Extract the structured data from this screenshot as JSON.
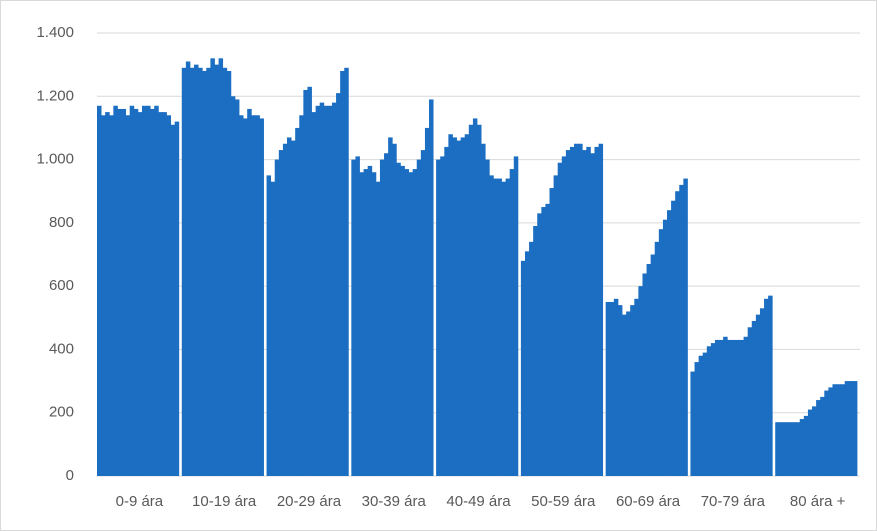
{
  "chart_data": {
    "type": "bar",
    "color": "#1b6ec2",
    "grid": true,
    "ylim": [
      0,
      1400
    ],
    "yticks": [
      0,
      200,
      400,
      600,
      800,
      {
        "value": 1000,
        "label": "1.000"
      },
      {
        "value": 1200,
        "label": "1.200"
      },
      {
        "value": 1400,
        "label": "1.400"
      }
    ],
    "groups": [
      {
        "label": "0-9 ára",
        "values": [
          1170,
          1140,
          1150,
          1140,
          1170,
          1160,
          1160,
          1140,
          1170,
          1160,
          1150,
          1170,
          1170,
          1160,
          1170,
          1150,
          1150,
          1140,
          1110,
          1120
        ]
      },
      {
        "label": "10-19 ára",
        "values": [
          1290,
          1310,
          1290,
          1300,
          1290,
          1280,
          1290,
          1320,
          1300,
          1320,
          1290,
          1280,
          1200,
          1190,
          1140,
          1130,
          1160,
          1140,
          1140,
          1130
        ]
      },
      {
        "label": "20-29 ára",
        "values": [
          950,
          930,
          1000,
          1030,
          1050,
          1070,
          1060,
          1100,
          1140,
          1220,
          1230,
          1150,
          1170,
          1180,
          1170,
          1170,
          1180,
          1210,
          1280,
          1290
        ]
      },
      {
        "label": "30-39 ára",
        "values": [
          1000,
          1010,
          960,
          970,
          980,
          960,
          930,
          1000,
          1020,
          1070,
          1050,
          990,
          980,
          970,
          960,
          970,
          1000,
          1030,
          1100,
          1190
        ]
      },
      {
        "label": "40-49 ára",
        "values": [
          1000,
          1010,
          1040,
          1080,
          1070,
          1060,
          1070,
          1080,
          1110,
          1130,
          1110,
          1050,
          1000,
          950,
          940,
          940,
          930,
          940,
          970,
          1010
        ]
      },
      {
        "label": "50-59 ára",
        "values": [
          680,
          710,
          740,
          790,
          830,
          850,
          860,
          910,
          950,
          990,
          1010,
          1030,
          1040,
          1050,
          1050,
          1030,
          1040,
          1020,
          1040,
          1050
        ]
      },
      {
        "label": "60-69 ára",
        "values": [
          550,
          550,
          560,
          540,
          510,
          520,
          540,
          560,
          600,
          640,
          670,
          700,
          740,
          780,
          810,
          840,
          870,
          900,
          920,
          940
        ]
      },
      {
        "label": "70-79 ára",
        "values": [
          330,
          360,
          380,
          390,
          410,
          420,
          430,
          430,
          440,
          430,
          430,
          430,
          430,
          440,
          470,
          490,
          510,
          530,
          560,
          570
        ]
      },
      {
        "label": "80 ára +",
        "values": [
          170,
          170,
          170,
          170,
          170,
          170,
          180,
          190,
          210,
          220,
          240,
          250,
          270,
          280,
          290,
          290,
          290,
          300,
          300,
          300
        ]
      }
    ]
  }
}
